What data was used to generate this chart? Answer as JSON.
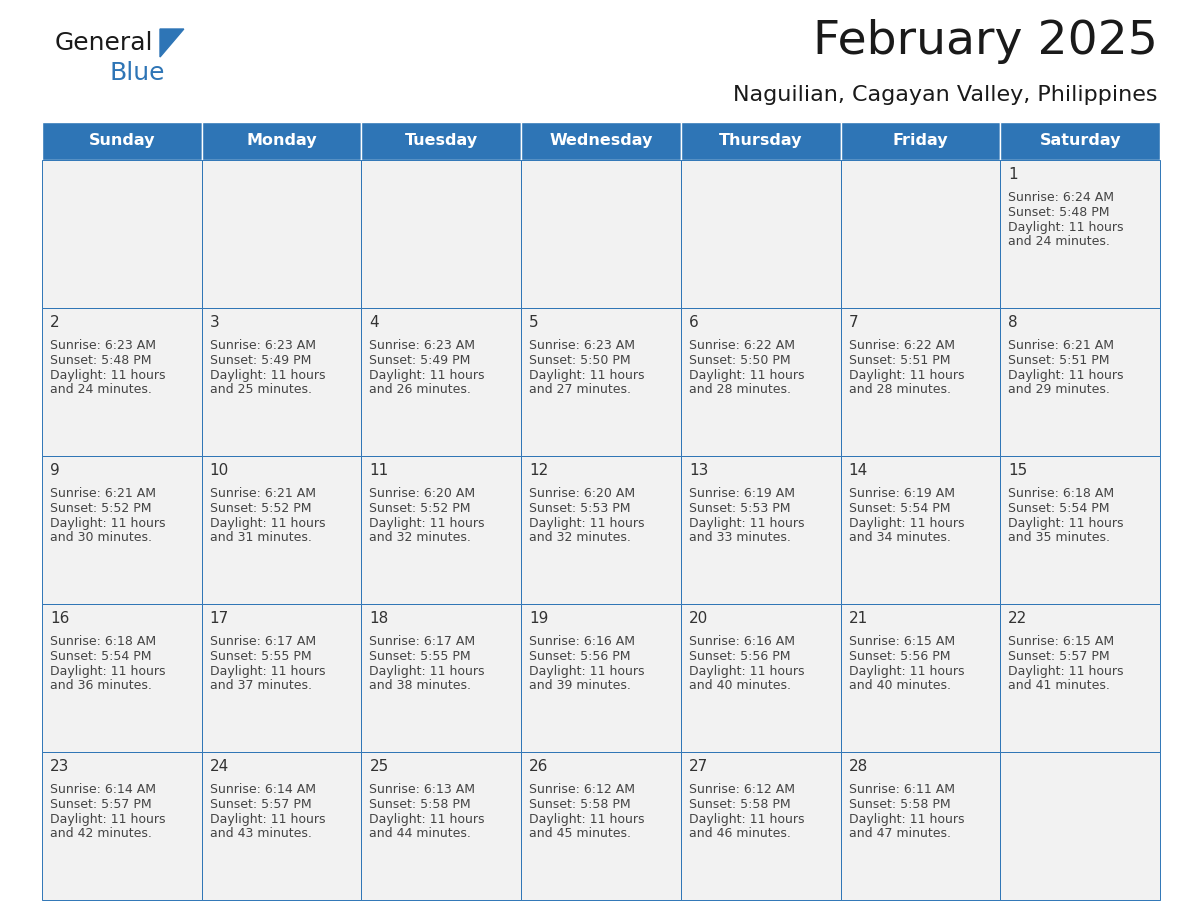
{
  "title": "February 2025",
  "subtitle": "Naguilian, Cagayan Valley, Philippines",
  "logo_text1": "General",
  "logo_text2": "Blue",
  "header_bg": "#2E75B6",
  "header_text_color": "#FFFFFF",
  "cell_bg": "#F2F2F2",
  "cell_border_color": "#2E75B6",
  "day_number_color": "#333333",
  "info_text_color": "#444444",
  "days_of_week": [
    "Sunday",
    "Monday",
    "Tuesday",
    "Wednesday",
    "Thursday",
    "Friday",
    "Saturday"
  ],
  "calendar": [
    [
      null,
      null,
      null,
      null,
      null,
      null,
      {
        "day": 1,
        "sunrise": "6:24 AM",
        "sunset": "5:48 PM",
        "daylight": "11 hours",
        "daylight2": "and 24 minutes."
      }
    ],
    [
      {
        "day": 2,
        "sunrise": "6:23 AM",
        "sunset": "5:48 PM",
        "daylight": "11 hours",
        "daylight2": "and 24 minutes."
      },
      {
        "day": 3,
        "sunrise": "6:23 AM",
        "sunset": "5:49 PM",
        "daylight": "11 hours",
        "daylight2": "and 25 minutes."
      },
      {
        "day": 4,
        "sunrise": "6:23 AM",
        "sunset": "5:49 PM",
        "daylight": "11 hours",
        "daylight2": "and 26 minutes."
      },
      {
        "day": 5,
        "sunrise": "6:23 AM",
        "sunset": "5:50 PM",
        "daylight": "11 hours",
        "daylight2": "and 27 minutes."
      },
      {
        "day": 6,
        "sunrise": "6:22 AM",
        "sunset": "5:50 PM",
        "daylight": "11 hours",
        "daylight2": "and 28 minutes."
      },
      {
        "day": 7,
        "sunrise": "6:22 AM",
        "sunset": "5:51 PM",
        "daylight": "11 hours",
        "daylight2": "and 28 minutes."
      },
      {
        "day": 8,
        "sunrise": "6:21 AM",
        "sunset": "5:51 PM",
        "daylight": "11 hours",
        "daylight2": "and 29 minutes."
      }
    ],
    [
      {
        "day": 9,
        "sunrise": "6:21 AM",
        "sunset": "5:52 PM",
        "daylight": "11 hours",
        "daylight2": "and 30 minutes."
      },
      {
        "day": 10,
        "sunrise": "6:21 AM",
        "sunset": "5:52 PM",
        "daylight": "11 hours",
        "daylight2": "and 31 minutes."
      },
      {
        "day": 11,
        "sunrise": "6:20 AM",
        "sunset": "5:52 PM",
        "daylight": "11 hours",
        "daylight2": "and 32 minutes."
      },
      {
        "day": 12,
        "sunrise": "6:20 AM",
        "sunset": "5:53 PM",
        "daylight": "11 hours",
        "daylight2": "and 32 minutes."
      },
      {
        "day": 13,
        "sunrise": "6:19 AM",
        "sunset": "5:53 PM",
        "daylight": "11 hours",
        "daylight2": "and 33 minutes."
      },
      {
        "day": 14,
        "sunrise": "6:19 AM",
        "sunset": "5:54 PM",
        "daylight": "11 hours",
        "daylight2": "and 34 minutes."
      },
      {
        "day": 15,
        "sunrise": "6:18 AM",
        "sunset": "5:54 PM",
        "daylight": "11 hours",
        "daylight2": "and 35 minutes."
      }
    ],
    [
      {
        "day": 16,
        "sunrise": "6:18 AM",
        "sunset": "5:54 PM",
        "daylight": "11 hours",
        "daylight2": "and 36 minutes."
      },
      {
        "day": 17,
        "sunrise": "6:17 AM",
        "sunset": "5:55 PM",
        "daylight": "11 hours",
        "daylight2": "and 37 minutes."
      },
      {
        "day": 18,
        "sunrise": "6:17 AM",
        "sunset": "5:55 PM",
        "daylight": "11 hours",
        "daylight2": "and 38 minutes."
      },
      {
        "day": 19,
        "sunrise": "6:16 AM",
        "sunset": "5:56 PM",
        "daylight": "11 hours",
        "daylight2": "and 39 minutes."
      },
      {
        "day": 20,
        "sunrise": "6:16 AM",
        "sunset": "5:56 PM",
        "daylight": "11 hours",
        "daylight2": "and 40 minutes."
      },
      {
        "day": 21,
        "sunrise": "6:15 AM",
        "sunset": "5:56 PM",
        "daylight": "11 hours",
        "daylight2": "and 40 minutes."
      },
      {
        "day": 22,
        "sunrise": "6:15 AM",
        "sunset": "5:57 PM",
        "daylight": "11 hours",
        "daylight2": "and 41 minutes."
      }
    ],
    [
      {
        "day": 23,
        "sunrise": "6:14 AM",
        "sunset": "5:57 PM",
        "daylight": "11 hours",
        "daylight2": "and 42 minutes."
      },
      {
        "day": 24,
        "sunrise": "6:14 AM",
        "sunset": "5:57 PM",
        "daylight": "11 hours",
        "daylight2": "and 43 minutes."
      },
      {
        "day": 25,
        "sunrise": "6:13 AM",
        "sunset": "5:58 PM",
        "daylight": "11 hours",
        "daylight2": "and 44 minutes."
      },
      {
        "day": 26,
        "sunrise": "6:12 AM",
        "sunset": "5:58 PM",
        "daylight": "11 hours",
        "daylight2": "and 45 minutes."
      },
      {
        "day": 27,
        "sunrise": "6:12 AM",
        "sunset": "5:58 PM",
        "daylight": "11 hours",
        "daylight2": "and 46 minutes."
      },
      {
        "day": 28,
        "sunrise": "6:11 AM",
        "sunset": "5:58 PM",
        "daylight": "11 hours",
        "daylight2": "and 47 minutes."
      },
      null
    ]
  ],
  "title_fontsize": 34,
  "subtitle_fontsize": 16,
  "header_fontsize": 11.5,
  "day_number_fontsize": 11,
  "info_fontsize": 9.0,
  "fig_width": 11.88,
  "fig_height": 9.18,
  "dpi": 100
}
